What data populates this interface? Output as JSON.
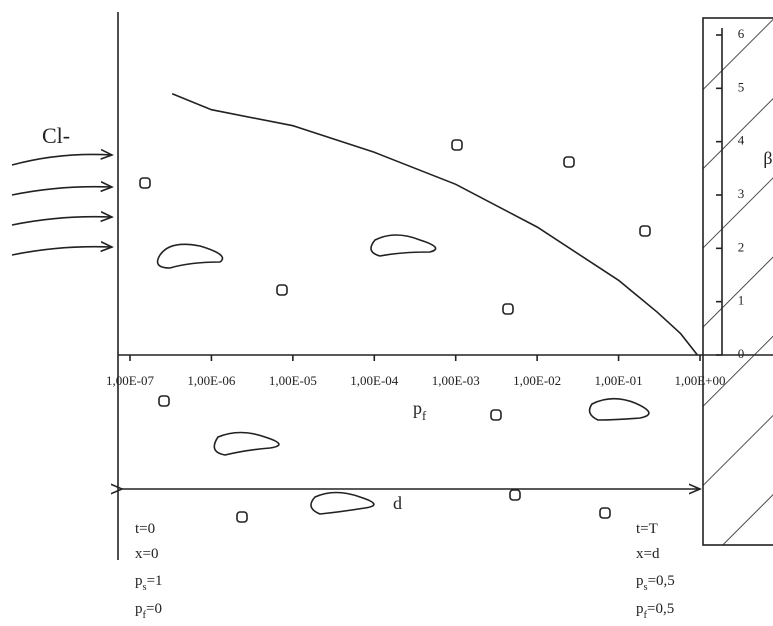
{
  "chart_data": {
    "type": "line",
    "x_scale": "log",
    "x_label": {
      "symbol": "p",
      "subscript": "f"
    },
    "y_label": "β",
    "x": [
      3.3e-07,
      1e-06,
      1e-05,
      0.0001,
      0.001,
      0.01,
      0.1,
      0.3,
      0.58,
      0.93
    ],
    "series": [
      {
        "color": "#222222",
        "values": [
          4.9,
          4.6,
          4.3,
          3.8,
          3.2,
          2.4,
          1.4,
          0.8,
          0.4,
          0
        ]
      }
    ],
    "xlim": [
      1e-07,
      1
    ],
    "xticks": [
      {
        "value": 1e-07,
        "label": "1,00E-07"
      },
      {
        "value": 1e-06,
        "label": "1,00E-06"
      },
      {
        "value": 1e-05,
        "label": "1,00E-05"
      },
      {
        "value": 0.0001,
        "label": "1,00E-04"
      },
      {
        "value": 0.001,
        "label": "1,00E-03"
      },
      {
        "value": 0.01,
        "label": "1,00E-02"
      },
      {
        "value": 0.1,
        "label": "1,00E-01"
      },
      {
        "value": 1,
        "label": "1,00E+00"
      }
    ],
    "ylim": [
      0,
      6
    ],
    "yticks": [
      0,
      1,
      2,
      3,
      4,
      5,
      6
    ],
    "annotations": [
      {
        "text": "Cl-"
      },
      {
        "text": "d"
      },
      {
        "text": "t=0"
      },
      {
        "text": "x=0"
      },
      {
        "symbol": "p",
        "subscript": "s",
        "text": "=1"
      },
      {
        "symbol": "p",
        "subscript": "f",
        "text": "=0"
      },
      {
        "text": "t=T"
      },
      {
        "text": "x=d"
      },
      {
        "symbol": "p",
        "subscript": "s",
        "text": "=0,5"
      },
      {
        "symbol": "p",
        "subscript": "f",
        "text": "=0,5"
      }
    ]
  }
}
